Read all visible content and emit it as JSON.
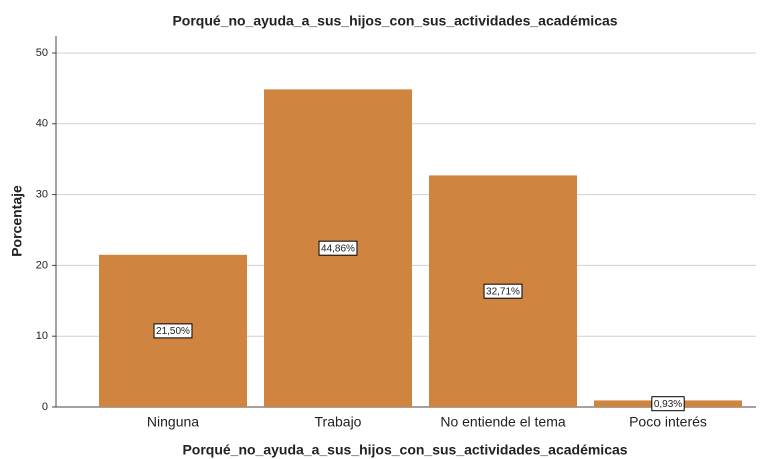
{
  "chart_data": {
    "type": "bar",
    "title": "Porqué_no_ayuda_a_sus_hijos_con_sus_actividades_académicas",
    "x_label": "Porqué_no_ayuda_a_sus_hijos_con_sus_actividades_académicas",
    "y_label": "Porcentaje",
    "categories": [
      "Ninguna",
      "Trabajo",
      "No entiende el tema",
      "Poco interés"
    ],
    "values": [
      21.5,
      44.86,
      32.71,
      0.93
    ],
    "value_labels": [
      "21,50%",
      "44,86%",
      "32,71%",
      "0,93%"
    ],
    "color": "#cf8540",
    "ylim": [
      0,
      52.4
    ],
    "yticks": [
      0,
      10,
      20,
      30,
      40,
      50
    ],
    "grid": true
  }
}
